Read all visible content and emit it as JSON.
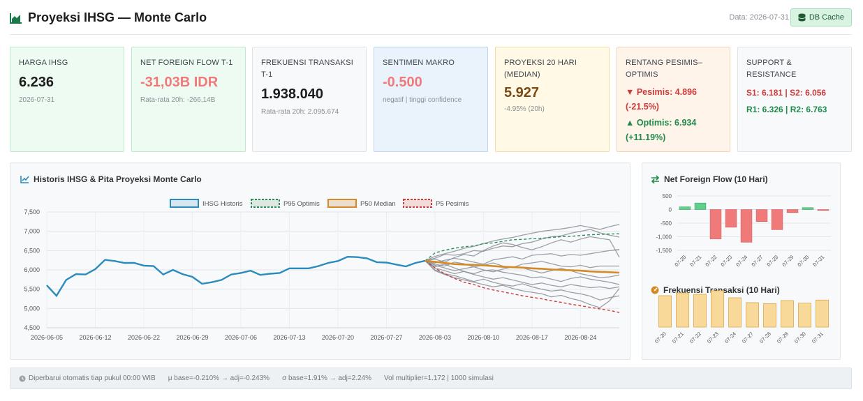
{
  "header": {
    "title": "Proyeksi IHSG — Monte Carlo",
    "data_date": "Data: 2026-07-31",
    "cache_label": "DB Cache"
  },
  "cards": {
    "harga": {
      "title": "HARGA IHSG",
      "value": "6.236",
      "sub": "2026-07-31",
      "bg": "#eefbf2",
      "border": "#bfe9cd",
      "value_color": "#1c1c1c"
    },
    "nff": {
      "title": "NET FOREIGN FLOW T-1",
      "value": "-31,03B IDR",
      "sub": "Rata-rata 20h: -266,14B",
      "bg": "#eefbf2",
      "border": "#bfe9cd",
      "value_color": "#f07a7a"
    },
    "freq": {
      "title": "FREKUENSI TRANSAKSI T-1",
      "value": "1.938.040",
      "sub": "Rata-rata 20h: 2.095.674",
      "bg": "#f7f9fb",
      "border": "#dfe3e8",
      "value_color": "#1c1c1c"
    },
    "sentimen": {
      "title": "SENTIMEN MAKRO",
      "value": "-0.500",
      "sub": "negatif | tinggi confidence",
      "bg": "#eaf3fc",
      "border": "#bdd6f0",
      "value_color": "#f07a7a"
    },
    "proyeksi": {
      "title_line1": "PROYEKSI 20 HARI",
      "title_line2": "(MEDIAN)",
      "value": "5.927",
      "sub": "-4.95% (20h)",
      "bg": "#fff9e6",
      "border": "#f1dfa3",
      "value_color": "#7a4a12"
    },
    "rentang": {
      "title_line1": "RENTANG PESIMIS–",
      "title_line2": "OPTIMIS",
      "pesimis_line1": "▼ Pesimis: 4.896",
      "pesimis_line2": "(-21.5%)",
      "optimis_line1": "▲ Optimis: 6.934",
      "optimis_line2": "(+11.19%)",
      "bg": "#fff4ea",
      "border": "#f3d3b4"
    },
    "sr": {
      "title": "SUPPORT & RESISTANCE",
      "support": "S1: 6.181 | S2: 6.056",
      "resistance": "R1: 6.326 | R2: 6.763",
      "bg": "#f7f9fb",
      "border": "#dfe3e8"
    }
  },
  "main_chart": {
    "title": "Historis IHSG & Pita Proyeksi Monte Carlo",
    "chart_data": {
      "type": "line",
      "legend": [
        "IHSG Historis",
        "P95 Optimis",
        "P50 Median",
        "P5 Pesimis"
      ],
      "legend_position": "top",
      "ylim": [
        4500,
        7500
      ],
      "yticks": [
        "7,500",
        "7,000",
        "6,500",
        "6,000",
        "5,500",
        "5,000",
        "4,500"
      ],
      "xticks": [
        "2026-06-05",
        "2026-06-12",
        "2026-06-22",
        "2026-06-29",
        "2026-07-06",
        "2026-07-13",
        "2026-07-20",
        "2026-07-27",
        "2026-08-03",
        "2026-08-10",
        "2026-08-17",
        "2026-08-24"
      ],
      "historical": [
        5600,
        5330,
        5740,
        5890,
        5880,
        6020,
        6260,
        6230,
        6180,
        6180,
        6110,
        6100,
        5880,
        6000,
        5890,
        5820,
        5640,
        5680,
        5740,
        5880,
        5920,
        5980,
        5870,
        5900,
        5920,
        6040,
        6040,
        6040,
        6100,
        6180,
        6230,
        6340,
        6330,
        6300,
        6200,
        6190,
        6140,
        6090,
        6180,
        6236
      ],
      "p95": [
        6236,
        6440,
        6510,
        6560,
        6600,
        6620,
        6680,
        6700,
        6740,
        6780,
        6790,
        6810,
        6820,
        6840,
        6860,
        6870,
        6890,
        6910,
        6920,
        6930,
        6934
      ],
      "p50": [
        6236,
        6210,
        6180,
        6150,
        6140,
        6130,
        6120,
        6100,
        6080,
        6070,
        6060,
        6040,
        6030,
        6010,
        6000,
        5990,
        5980,
        5960,
        5950,
        5940,
        5927
      ],
      "p5": [
        6236,
        6050,
        5900,
        5780,
        5680,
        5620,
        5540,
        5480,
        5430,
        5380,
        5330,
        5290,
        5250,
        5200,
        5160,
        5110,
        5070,
        5030,
        4990,
        4950,
        4896
      ],
      "sim_paths": [
        [
          6236,
          6350,
          6420,
          6480,
          6560,
          6610,
          6680,
          6750,
          6800,
          6840,
          6900,
          6950,
          7000,
          7030,
          7060,
          7100,
          7150,
          7100,
          7050,
          7120,
          7180
        ],
        [
          6236,
          6300,
          6400,
          6380,
          6420,
          6500,
          6480,
          6560,
          6620,
          6600,
          6680,
          6720,
          6800,
          6860,
          6880,
          6950,
          7000,
          7050,
          6960,
          6900,
          6850
        ],
        [
          6236,
          6280,
          6200,
          6320,
          6400,
          6360,
          6500,
          6620,
          6700,
          6660,
          6580,
          6520,
          6600,
          6700,
          6780,
          6720,
          6800,
          6860,
          6820,
          6780,
          6330
        ],
        [
          6236,
          6180,
          6250,
          6300,
          6260,
          6200,
          6150,
          6260,
          6300,
          6340,
          6280,
          6380,
          6400,
          6420,
          6360,
          6400,
          6380,
          6420,
          6460,
          6500,
          6530
        ],
        [
          6236,
          6150,
          6100,
          6200,
          6160,
          6080,
          6120,
          6180,
          6100,
          6060,
          6150,
          6180,
          6220,
          6160,
          6100,
          6080,
          6120,
          6060,
          6100,
          6100,
          6100
        ],
        [
          6236,
          6120,
          6050,
          5980,
          6030,
          6080,
          6000,
          5950,
          6020,
          6080,
          6060,
          5980,
          5920,
          5980,
          6040,
          5980,
          5900,
          5850,
          5800,
          5820,
          5870
        ],
        [
          6236,
          6080,
          6150,
          6050,
          5960,
          5900,
          5980,
          6000,
          5940,
          5900,
          5860,
          5800,
          5820,
          5760,
          5700,
          5780,
          5820,
          5760,
          5720,
          5680,
          5620
        ],
        [
          6236,
          6050,
          5980,
          5900,
          5960,
          5880,
          5820,
          5760,
          5800,
          5740,
          5680,
          5620,
          5660,
          5600,
          5560,
          5620,
          5580,
          5540,
          5560,
          5520,
          5560
        ],
        [
          6236,
          6000,
          5900,
          5850,
          5780,
          5700,
          5760,
          5680,
          5620,
          5580,
          5640,
          5560,
          5500,
          5450,
          5480,
          5420,
          5380,
          5320,
          5220,
          5280,
          5330
        ],
        [
          6236,
          5980,
          5880,
          5800,
          5740,
          5680,
          5620,
          5560,
          5600,
          5520,
          5460,
          5420,
          5380,
          5300,
          5340,
          5260,
          5200,
          5100,
          5020,
          5200,
          5520
        ]
      ],
      "colors": {
        "historical": "#2a8bbd",
        "p95": "#2e8b57",
        "p50": "#d68a27",
        "p5": "#cf3b3b",
        "sim": "#8b9096"
      }
    }
  },
  "nff_chart": {
    "title": "Net Foreign Flow (10 Hari)",
    "chart_data": {
      "type": "bar",
      "categories": [
        "07-20",
        "07-21",
        "07-22",
        "07-23",
        "07-24",
        "07-27",
        "07-28",
        "07-29",
        "07-30",
        "07-31"
      ],
      "values": [
        100,
        240,
        -1080,
        -650,
        -1200,
        -440,
        -740,
        -110,
        70,
        -31
      ],
      "ylim": [
        -1500,
        500
      ],
      "yticks": [
        "500",
        "0",
        "-500",
        "-1,000",
        "-1,500"
      ],
      "pos_color": "#5fcf8a",
      "neg_color": "#f07a7a"
    }
  },
  "freq_chart": {
    "title": "Frekuensi Transaksi (10 Hari)",
    "chart_data": {
      "type": "bar",
      "categories": [
        "07-20",
        "07-21",
        "07-22",
        "07-23",
        "07-24",
        "07-27",
        "07-28",
        "07-29",
        "07-30",
        "07-31"
      ],
      "values": [
        2250000,
        2450000,
        2350000,
        2600000,
        2100000,
        1750000,
        1680000,
        1900000,
        1720000,
        1938040
      ],
      "bar_color": "#f8d99a",
      "edge_color": "#d9a948"
    }
  },
  "footer": {
    "updated": "Diperbarui otomatis tiap pukul 00:00 WIB",
    "mu": "μ base=-0.210% → adj=-0.243%",
    "sigma": "σ base=1.91% → adj=2.24%",
    "vol": "Vol multiplier=1.172 | 1000 simulasi"
  }
}
